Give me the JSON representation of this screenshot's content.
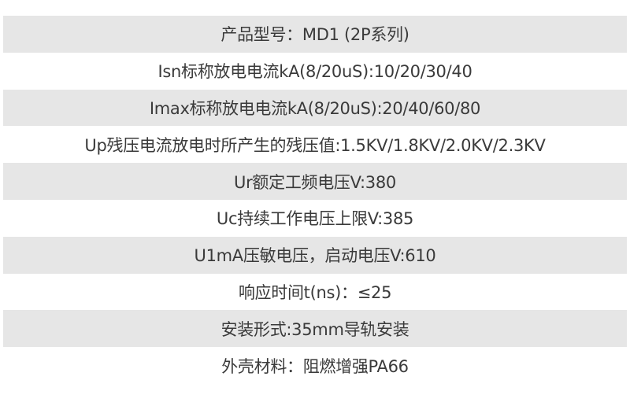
{
  "specs": [
    {
      "text": "产品型号：MD1 (2P系列)",
      "shaded": true
    },
    {
      "text": "Isn标称放电电流kA(8/20uS):10/20/30/40",
      "shaded": false
    },
    {
      "text": "Imax标称放电电流kA(8/20uS):20/40/60/80",
      "shaded": true
    },
    {
      "text": "Up残压电流放电时所产生的残压值:1.5KV/1.8KV/2.0KV/2.3KV",
      "shaded": false
    },
    {
      "text": "Ur额定工频电压V:380",
      "shaded": true
    },
    {
      "text": "Uc持续工作电压上限V:385",
      "shaded": false
    },
    {
      "text": "U1mA压敏电压，启动电压V:610",
      "shaded": true
    },
    {
      "text": "响应时间t(ns)：≤25",
      "shaded": false
    },
    {
      "text": "安装形式:35mm导轨安装",
      "shaded": true
    },
    {
      "text": "外壳材料：阻燃增强PA66",
      "shaded": false
    }
  ],
  "colors": {
    "shaded_row": "#e6e6e6",
    "text": "#3a3a3a",
    "background": "#ffffff"
  }
}
